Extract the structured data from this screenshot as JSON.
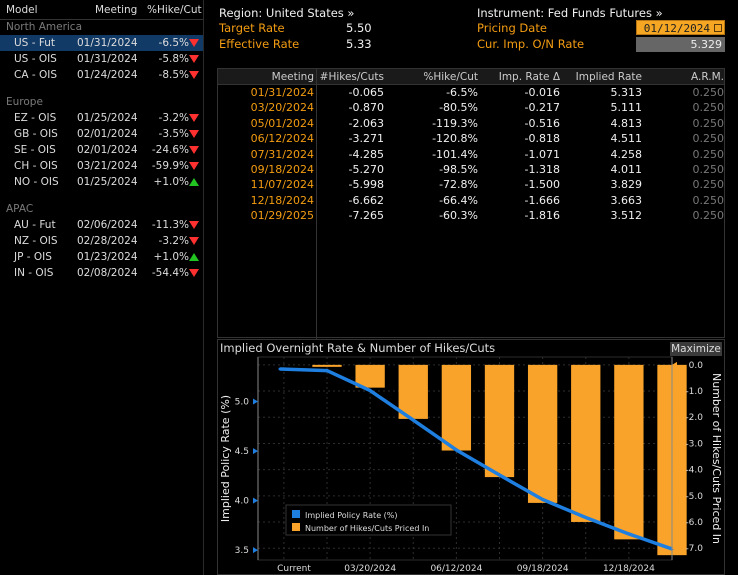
{
  "left_panel": {
    "header": {
      "model": "Model",
      "meeting": "Meeting",
      "pct": "%Hike/Cut"
    },
    "groups": [
      {
        "name": "North America",
        "rows": [
          {
            "model": "US - Fut",
            "meeting": "01/31/2024",
            "pct": "-6.5%",
            "dir": "down",
            "selected": true
          },
          {
            "model": "US - OIS",
            "meeting": "01/31/2024",
            "pct": "-5.8%",
            "dir": "down"
          },
          {
            "model": "CA - OIS",
            "meeting": "01/24/2024",
            "pct": "-8.5%",
            "dir": "down"
          }
        ]
      },
      {
        "name": "Europe",
        "rows": [
          {
            "model": "EZ - OIS",
            "meeting": "01/25/2024",
            "pct": "-3.2%",
            "dir": "down"
          },
          {
            "model": "GB - OIS",
            "meeting": "02/01/2024",
            "pct": "-3.5%",
            "dir": "down"
          },
          {
            "model": "SE - OIS",
            "meeting": "02/01/2024",
            "pct": "-24.6%",
            "dir": "down"
          },
          {
            "model": "CH - OIS",
            "meeting": "03/21/2024",
            "pct": "-59.9%",
            "dir": "down"
          },
          {
            "model": "NO - OIS",
            "meeting": "01/25/2024",
            "pct": "+1.0%",
            "dir": "up"
          }
        ]
      },
      {
        "name": "APAC",
        "rows": [
          {
            "model": "AU - Fut",
            "meeting": "02/06/2024",
            "pct": "-11.3%",
            "dir": "down"
          },
          {
            "model": "NZ - OIS",
            "meeting": "02/28/2024",
            "pct": "-3.2%",
            "dir": "down"
          },
          {
            "model": "JP - OIS",
            "meeting": "01/23/2024",
            "pct": "+1.0%",
            "dir": "up"
          },
          {
            "model": "IN - OIS",
            "meeting": "02/08/2024",
            "pct": "-54.4%",
            "dir": "down"
          }
        ]
      }
    ]
  },
  "summary": {
    "region_label": "Region: United States »",
    "target_rate_label": "Target Rate",
    "target_rate": "5.50",
    "effective_rate_label": "Effective Rate",
    "effective_rate": "5.33",
    "instrument_label": "Instrument: Fed Funds Futures »",
    "pricing_date_label": "Pricing Date",
    "pricing_date": "01/12/2024",
    "cur_imp_label": "Cur. Imp. O/N Rate",
    "cur_imp": "5.329"
  },
  "table": {
    "headers": [
      "Meeting",
      "#Hikes/Cuts",
      "%Hike/Cut",
      "Imp. Rate Δ",
      "Implied Rate",
      "A.R.M."
    ],
    "rows": [
      [
        "01/31/2024",
        "-0.065",
        "-6.5%",
        "-0.016",
        "5.313",
        "0.250"
      ],
      [
        "03/20/2024",
        "-0.870",
        "-80.5%",
        "-0.217",
        "5.111",
        "0.250"
      ],
      [
        "05/01/2024",
        "-2.063",
        "-119.3%",
        "-0.516",
        "4.813",
        "0.250"
      ],
      [
        "06/12/2024",
        "-3.271",
        "-120.8%",
        "-0.818",
        "4.511",
        "0.250"
      ],
      [
        "07/31/2024",
        "-4.285",
        "-101.4%",
        "-1.071",
        "4.258",
        "0.250"
      ],
      [
        "09/18/2024",
        "-5.270",
        "-98.5%",
        "-1.318",
        "4.011",
        "0.250"
      ],
      [
        "11/07/2024",
        "-5.998",
        "-72.8%",
        "-1.500",
        "3.829",
        "0.250"
      ],
      [
        "12/18/2024",
        "-6.662",
        "-66.4%",
        "-1.666",
        "3.663",
        "0.250"
      ],
      [
        "01/29/2025",
        "-7.265",
        "-60.3%",
        "-1.816",
        "3.512",
        "0.250"
      ]
    ]
  },
  "chart_panel": {
    "title": "Implied Overnight Rate & Number of Hikes/Cuts",
    "maximize_label": "Maximize"
  },
  "chart_data": {
    "type": "bar",
    "categories": [
      "Current",
      "01/31/2024",
      "03/20/2024",
      "05/01/2024",
      "06/12/2024",
      "07/31/2024",
      "09/18/2024",
      "11/07/2024",
      "12/18/2024",
      "01/29/2025"
    ],
    "x_tick_labels": [
      "Current",
      "03/20/2024",
      "06/12/2024",
      "09/18/2024",
      "12/18/2024"
    ],
    "series": [
      {
        "name": "Implied Policy Rate (%)",
        "kind": "line",
        "axis": "left",
        "color": "#1e7fe0",
        "values": [
          5.329,
          5.313,
          5.111,
          4.813,
          4.511,
          4.258,
          4.011,
          3.829,
          3.663,
          3.512
        ]
      },
      {
        "name": "Number of Hikes/Cuts Priced In",
        "kind": "bar",
        "axis": "right",
        "color": "#f9a32a",
        "values": [
          null,
          -0.065,
          -0.87,
          -2.063,
          -3.271,
          -4.285,
          -5.27,
          -5.998,
          -6.662,
          -7.265
        ]
      }
    ],
    "ylabel_left": "Implied Policy Rate (%)",
    "ylabel_right": "Number of Hikes/Cuts Priced In",
    "ylim_left": [
      3.4,
      5.45
    ],
    "yticks_left": [
      3.5,
      4.0,
      4.5,
      5.0
    ],
    "ytick_labels_left": [
      "3.5",
      "4.0",
      "4.5",
      "5.0"
    ],
    "ylim_right": [
      -7.45,
      0.3
    ],
    "yticks_right": [
      0.0,
      -1.0,
      -2.0,
      -3.0,
      -4.0,
      -5.0,
      -6.0,
      -7.0
    ],
    "ytick_labels_right": [
      "0.0",
      "-1.0",
      "-2.0",
      "-3.0",
      "-4.0",
      "-5.0",
      "-6.0",
      "-7.0"
    ],
    "grid": true,
    "legend_position": "bottom-left"
  },
  "colors": {
    "accent": "#f39c12",
    "selected_row": "#123a66",
    "down": "#ff3030",
    "up": "#22c422",
    "bar": "#f9a32a",
    "line": "#1e7fe0"
  }
}
